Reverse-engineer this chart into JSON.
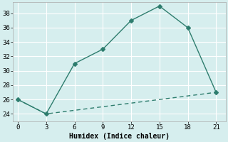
{
  "xlabel": "Humidex (Indice chaleur)",
  "line1_x": [
    0,
    3,
    6,
    9,
    12,
    15,
    18,
    21
  ],
  "line1_y": [
    26,
    24,
    31,
    33,
    37,
    39,
    36,
    27
  ],
  "line2_x": [
    0,
    3,
    6,
    9,
    12,
    15,
    18,
    21
  ],
  "line2_y": [
    26,
    24,
    24.5,
    25,
    25.5,
    26,
    26.5,
    27
  ],
  "line_color": "#2e7d6e",
  "marker": "D",
  "markersize": 3,
  "xlim": [
    -0.5,
    22
  ],
  "ylim": [
    23,
    39.5
  ],
  "xticks": [
    0,
    3,
    6,
    9,
    12,
    15,
    18,
    21
  ],
  "yticks": [
    24,
    26,
    28,
    30,
    32,
    34,
    36,
    38
  ],
  "bg_color": "#d6eeee",
  "grid_color": "#ffffff",
  "linewidth": 1.0,
  "tick_fontsize": 6.5,
  "xlabel_fontsize": 7
}
